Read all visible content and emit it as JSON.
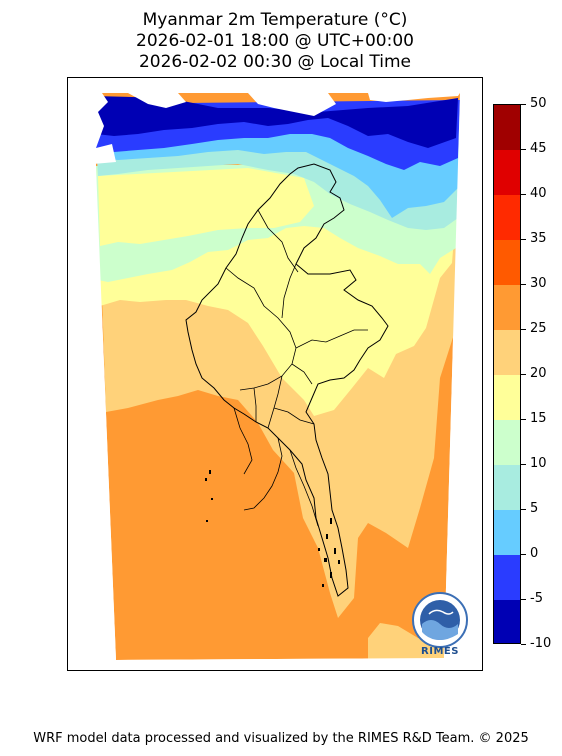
{
  "title": {
    "line1": "Myanmar 2m Temperature (°C)",
    "line2": "2026-02-01 18:00 @ UTC+00:00",
    "line3": "2026-02-02 00:30 @ Local Time"
  },
  "colorbar": {
    "labels": [
      "50",
      "45",
      "40",
      "35",
      "30",
      "25",
      "20",
      "15",
      "10",
      "5",
      "0",
      "-5",
      "-10"
    ],
    "bands": [
      {
        "range": "45-50",
        "color": "#a00000"
      },
      {
        "range": "40-45",
        "color": "#e00000"
      },
      {
        "range": "35-40",
        "color": "#ff2a00"
      },
      {
        "range": "30-35",
        "color": "#ff5a00"
      },
      {
        "range": "25-30",
        "color": "#ff9a33"
      },
      {
        "range": "20-25",
        "color": "#ffd27a"
      },
      {
        "range": "15-20",
        "color": "#ffff99"
      },
      {
        "range": "10-15",
        "color": "#ccffcc"
      },
      {
        "range": "5-10",
        "color": "#a8ece0"
      },
      {
        "range": "0-5",
        "color": "#66ccff"
      },
      {
        "range": "-5-0",
        "color": "#2a3cff"
      },
      {
        "range": "-10--5",
        "color": "#0000b4"
      }
    ]
  },
  "logo": {
    "text": "RIMES"
  },
  "footer": "WRF model data processed and visualized by the RIMES R&D Team. © 2025"
}
